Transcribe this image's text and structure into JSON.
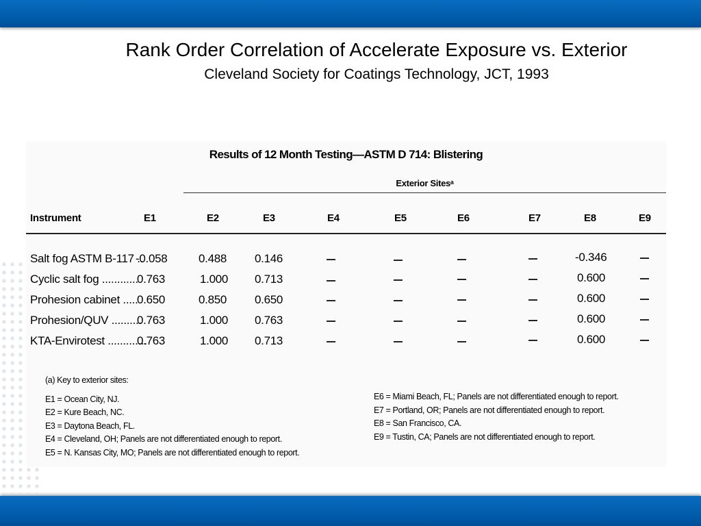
{
  "slide": {
    "title": "Rank Order Correlation of Accelerate Exposure  vs. Exterior",
    "subtitle": "Cleveland Society for Coatings Technology, JCT, 1993"
  },
  "table": {
    "title": "Results of 12 Month Testing—ASTM D 714: Blistering",
    "group_header": "Exterior Sitesᵃ",
    "instrument_header": "Instrument",
    "columns": [
      "E1",
      "E2",
      "E3",
      "E4",
      "E5",
      "E6",
      "E7",
      "E8",
      "E9"
    ],
    "rows": [
      {
        "label": "Salt fog ASTM B-117 ..",
        "values": [
          "-0.058",
          "0.488",
          "0.146",
          "—",
          "—",
          "—",
          "—",
          "-0.346",
          "—"
        ]
      },
      {
        "label": "Cyclic salt fog ............",
        "values": [
          "0.763",
          "1.000",
          "0.713",
          "—",
          "—",
          "—",
          "—",
          "0.600",
          "—"
        ]
      },
      {
        "label": "Prohesion cabinet .....",
        "values": [
          "0.650",
          "0.850",
          "0.650",
          "—",
          "—",
          "—",
          "—",
          "0.600",
          "—"
        ]
      },
      {
        "label": "Prohesion/QUV ..........",
        "values": [
          "0.763",
          "1.000",
          "0.763",
          "—",
          "—",
          "—",
          "—",
          "0.600",
          "—"
        ]
      },
      {
        "label": "KTA-Envirotest .............",
        "values": [
          "0.763",
          "1.000",
          "0.713",
          "—",
          "—",
          "—",
          "—",
          "0.600",
          "—"
        ]
      }
    ]
  },
  "key": {
    "heading": "(a)  Key to exterior sites:",
    "left": [
      "E1 = Ocean City, NJ.",
      "E2 = Kure Beach, NC.",
      "E3 = Daytona Beach, FL.",
      "E4 = Cleveland, OH; Panels are not differentiated enough to report.",
      "E5 = N. Kansas City, MO; Panels are not differentiated enough to report."
    ],
    "right": [
      "E6 = Miami Beach, FL; Panels are not differentiated enough to report.",
      "E7 = Portland, OR; Panels are not differentiated enough to report.",
      "E8 = San Francisco, CA.",
      "E9 = Tustin, CA; Panels are not differentiated enough to report."
    ]
  }
}
